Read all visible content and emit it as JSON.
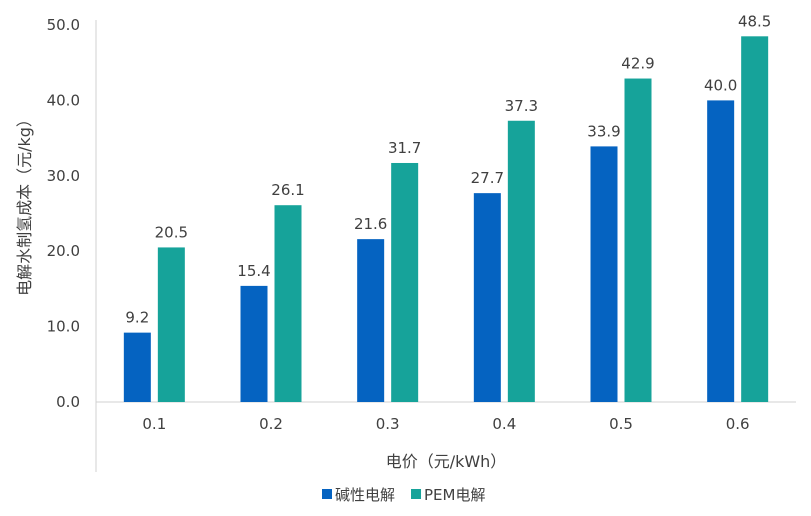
{
  "chart_data": {
    "type": "bar",
    "categories": [
      "0.1",
      "0.2",
      "0.3",
      "0.4",
      "0.5",
      "0.6"
    ],
    "series": [
      {
        "name": "碱性电解",
        "color": "#0563C1",
        "values": [
          9.2,
          15.4,
          21.6,
          27.7,
          33.9,
          40.0
        ]
      },
      {
        "name": "PEM电解",
        "color": "#16A39A",
        "values": [
          20.5,
          26.1,
          31.7,
          37.3,
          42.9,
          48.5
        ]
      }
    ],
    "value_labels": [
      [
        "9.2",
        "15.4",
        "21.6",
        "27.7",
        "33.9",
        "40.0"
      ],
      [
        "20.5",
        "26.1",
        "31.7",
        "37.3",
        "42.9",
        "48.5"
      ]
    ],
    "yticks": [
      "0.0",
      "10.0",
      "20.0",
      "30.0",
      "40.0",
      "50.0"
    ],
    "ylim": [
      0,
      50
    ],
    "xlabel": "电价（元/kWh）",
    "ylabel": "电解水制氢成本（元/kg）",
    "grid": false,
    "legend_position": "bottom"
  }
}
